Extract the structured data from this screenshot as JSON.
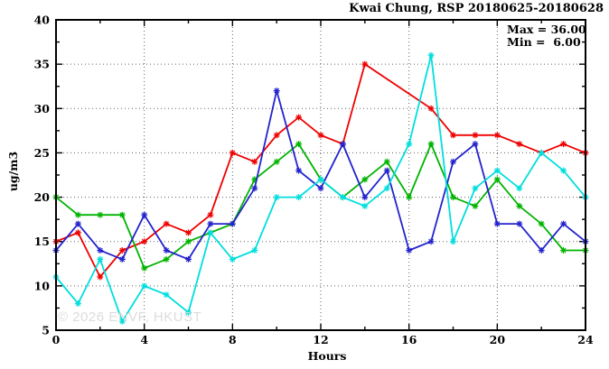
{
  "watermark": "© 2026 ENVF, HKUST",
  "chart_data": {
    "type": "line",
    "title": "Kwai Chung, RSP 20180625-20180628",
    "xlabel": "Hours",
    "ylabel": "ug/m3",
    "xlim": [
      0,
      24
    ],
    "ylim": [
      5,
      40
    ],
    "x_major_ticks": [
      0,
      4,
      8,
      12,
      16,
      20,
      24
    ],
    "x_minor_tick_step": 2,
    "y_major_ticks": [
      5,
      10,
      15,
      20,
      25,
      30,
      35,
      40
    ],
    "y_minor_tick_step": 2.5,
    "grid": {
      "style": "dotted",
      "horizontal_at": [
        10,
        15,
        20,
        25,
        30,
        35
      ],
      "vertical_at": [
        4,
        8,
        12,
        16,
        20
      ]
    },
    "annotations": {
      "max": "Max = 36.00",
      "min": "Min =  6.00"
    },
    "x": [
      0,
      1,
      2,
      3,
      4,
      5,
      6,
      7,
      8,
      9,
      10,
      11,
      12,
      13,
      14,
      15,
      16,
      17,
      18,
      19,
      20,
      21,
      22,
      23,
      24
    ],
    "series": [
      {
        "name": "red-line",
        "color": "#ee0000",
        "values": [
          15,
          16,
          11,
          14,
          15,
          17,
          16,
          18,
          25,
          24,
          27,
          29,
          27,
          26,
          35,
          null,
          null,
          30,
          27,
          27,
          27,
          26,
          25,
          26,
          25
        ]
      },
      {
        "name": "green-line",
        "color": "#00b400",
        "values": [
          20,
          18,
          18,
          18,
          12,
          13,
          15,
          16,
          17,
          22,
          24,
          26,
          22,
          20,
          22,
          24,
          20,
          26,
          20,
          19,
          22,
          19,
          17,
          14,
          14
        ]
      },
      {
        "name": "blue-line",
        "color": "#2323cd",
        "values": [
          14,
          17,
          14,
          13,
          18,
          14,
          13,
          17,
          17,
          21,
          32,
          23,
          21,
          26,
          20,
          23,
          14,
          15,
          24,
          26,
          17,
          17,
          14,
          17,
          15
        ]
      },
      {
        "name": "cyan-line",
        "color": "#00dede",
        "values": [
          11,
          8,
          13,
          6,
          10,
          9,
          7,
          16,
          13,
          14,
          20,
          20,
          22,
          20,
          19,
          21,
          26,
          36,
          15,
          21,
          23,
          21,
          25,
          23,
          20
        ]
      }
    ]
  }
}
